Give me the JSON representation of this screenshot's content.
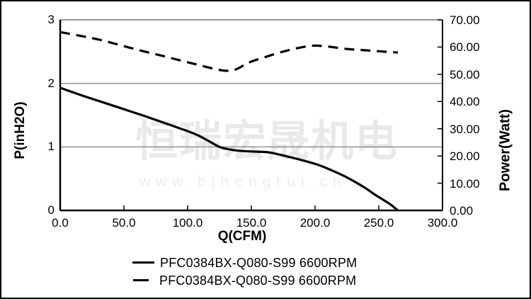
{
  "watermark": {
    "cn": "恒瑞宏晟机电",
    "url": "www.bjhengrui.cn"
  },
  "chart_data": {
    "type": "line",
    "title": "",
    "xlabel": "Q(CFM)",
    "ylabel_left": "P(inH2O)",
    "ylabel_right": "Power(Watt)",
    "x_axis": {
      "min": 0,
      "max": 300,
      "ticks": [
        "0.0",
        "50.0",
        "100.0",
        "150.0",
        "200.0",
        "250.0",
        "300.0"
      ]
    },
    "y_left": {
      "min": 0,
      "max": 3,
      "ticks": [
        "3",
        "2",
        "1",
        "0"
      ]
    },
    "y_right": {
      "min": 0,
      "max": 70,
      "ticks": [
        "70.00",
        "60.00",
        "50.00",
        "40.00",
        "30.00",
        "20.00",
        "10.00",
        "0.00"
      ]
    },
    "gridlines_y_left": [
      2,
      1
    ],
    "grid": "horizontal-only",
    "legend_position": "bottom-center",
    "colors": {
      "curve": "#000000",
      "grid": "#757575",
      "axis": "#000000",
      "border_top": "#757575"
    },
    "series": [
      {
        "name": "PFC0384BX-Q080-S99 6600RPM",
        "style": "solid",
        "axis": "left",
        "points": [
          [
            0,
            1.93
          ],
          [
            20,
            1.79
          ],
          [
            40,
            1.66
          ],
          [
            55,
            1.56
          ],
          [
            70,
            1.46
          ],
          [
            87,
            1.34
          ],
          [
            105,
            1.21
          ],
          [
            115,
            1.11
          ],
          [
            125,
            1.0
          ],
          [
            133,
            0.96
          ],
          [
            143,
            0.935
          ],
          [
            155,
            0.925
          ],
          [
            165,
            0.91
          ],
          [
            178,
            0.85
          ],
          [
            190,
            0.79
          ],
          [
            202,
            0.72
          ],
          [
            212,
            0.64
          ],
          [
            225,
            0.52
          ],
          [
            238,
            0.37
          ],
          [
            248,
            0.235
          ],
          [
            258,
            0.11
          ],
          [
            265,
            0
          ]
        ]
      },
      {
        "name": "PFC0384BX-Q080-S99 6600RPM",
        "style": "dashed",
        "axis": "right",
        "points": [
          [
            0,
            65.5
          ],
          [
            15,
            64.2
          ],
          [
            30,
            62.8
          ],
          [
            48,
            60.6
          ],
          [
            65,
            58.5
          ],
          [
            80,
            56.8
          ],
          [
            95,
            55.0
          ],
          [
            108,
            53.5
          ],
          [
            120,
            52.1
          ],
          [
            130,
            51.3
          ],
          [
            138,
            51.8
          ],
          [
            148,
            54.3
          ],
          [
            160,
            56.2
          ],
          [
            174,
            58.2
          ],
          [
            186,
            59.6
          ],
          [
            198,
            60.5
          ],
          [
            210,
            60.2
          ],
          [
            225,
            59.3
          ],
          [
            240,
            58.8
          ],
          [
            255,
            58.3
          ],
          [
            265,
            58.0
          ]
        ]
      }
    ]
  }
}
